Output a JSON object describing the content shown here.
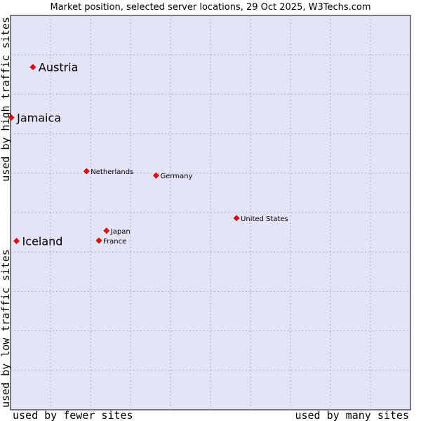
{
  "chart_data": {
    "type": "scatter",
    "title": "Market position, selected server locations, 29 Oct 2025, W3Techs.com",
    "xlabel_left": "used by fewer sites",
    "xlabel_right": "used by many sites",
    "ylabel_bottom": "used by low traffic sites",
    "ylabel_top": "used by high traffic sites",
    "xlim": [
      0,
      100
    ],
    "ylim": [
      0,
      100
    ],
    "grid": true,
    "point_color": "#ff0000",
    "plot_bg": "#e4e4f7",
    "points": [
      {
        "name": "Austria",
        "x": 5.6,
        "y": 86.9,
        "emphasis": true
      },
      {
        "name": "Jamaica",
        "x": 0.2,
        "y": 74.1,
        "emphasis": true
      },
      {
        "name": "Iceland",
        "x": 1.5,
        "y": 42.8,
        "emphasis": true
      },
      {
        "name": "Netherlands",
        "x": 19.0,
        "y": 60.5,
        "emphasis": false
      },
      {
        "name": "Germany",
        "x": 36.4,
        "y": 59.4,
        "emphasis": false
      },
      {
        "name": "United States",
        "x": 56.5,
        "y": 48.6,
        "emphasis": false
      },
      {
        "name": "Japan",
        "x": 24.0,
        "y": 45.4,
        "emphasis": false
      },
      {
        "name": "France",
        "x": 22.1,
        "y": 42.9,
        "emphasis": false
      }
    ]
  }
}
